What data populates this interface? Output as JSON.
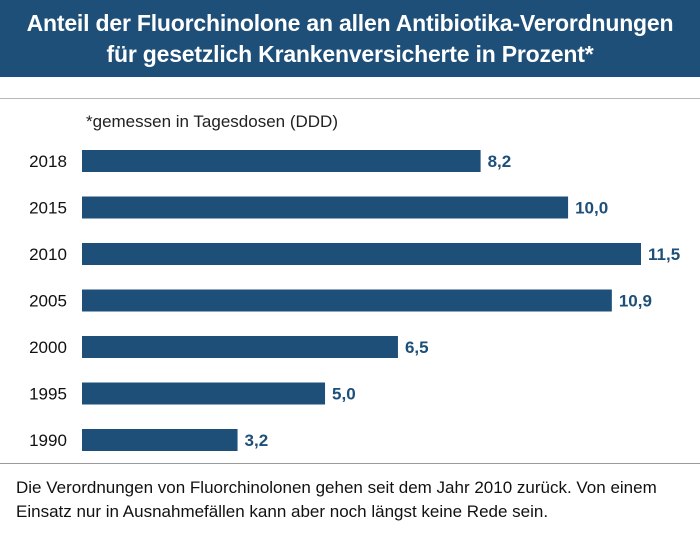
{
  "header": {
    "title_line1": "Anteil der Fluorchinolone an allen Antibiotika-Verordnungen",
    "title_line2": "für gesetzlich Krankenversicherte in Prozent*"
  },
  "note": "*gemessen in Tagesdosen (DDD)",
  "footer": "Die Verordnungen von Fluorchinolonen gehen seit dem Jahr 2010 zurück. Von einem Einsatz nur in Ausnahmefällen kann aber noch längst keine Rede sein.",
  "colors": {
    "header_bg": "#1d4f79",
    "bar": "#1d4f79",
    "value_label": "#1d4f79"
  },
  "chart_data": {
    "type": "bar",
    "orientation": "horizontal",
    "categories": [
      "2018",
      "2015",
      "2010",
      "2005",
      "2000",
      "1995",
      "1990"
    ],
    "values": [
      8.2,
      10.0,
      11.5,
      10.9,
      6.5,
      5.0,
      3.2
    ],
    "value_labels": [
      "8,2",
      "10,0",
      "11,5",
      "10,9",
      "6,5",
      "5,0",
      "3,2"
    ],
    "xlim": [
      0,
      11.5
    ],
    "grid": false,
    "legend": "none"
  }
}
